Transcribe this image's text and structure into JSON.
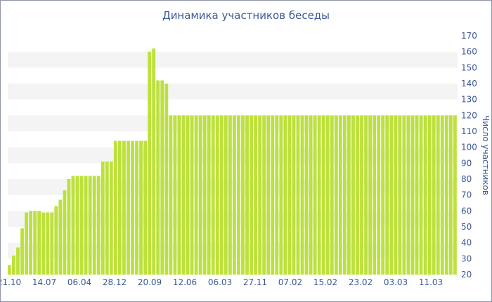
{
  "chart_data": {
    "type": "bar",
    "title": "Динамика участников беседы",
    "ylabel": "Число участников",
    "xlabel": "",
    "ylim": [
      20,
      170
    ],
    "y_ticks": [
      20,
      30,
      40,
      50,
      60,
      70,
      80,
      90,
      100,
      110,
      120,
      130,
      140,
      150,
      160,
      170
    ],
    "y_axis_side": "right",
    "x_tick_labels": [
      "21.10",
      "14.07",
      "06.04",
      "28.12",
      "20.09",
      "12.06",
      "06.03",
      "27.11",
      "07.02",
      "15.02",
      "23.02",
      "03.03",
      "11.03"
    ],
    "grid": "horizontal alternating bands",
    "bar_color": "#bde13c",
    "values": [
      26,
      32,
      37,
      49,
      59,
      60,
      60,
      60,
      59,
      59,
      59,
      63,
      67,
      73,
      80,
      82,
      82,
      82,
      82,
      82,
      82,
      82,
      91,
      91,
      91,
      104,
      104,
      104,
      104,
      104,
      104,
      104,
      104,
      160,
      162,
      142,
      142,
      140,
      120,
      120,
      120,
      120,
      120,
      120,
      120,
      120,
      120,
      120,
      120,
      120,
      120,
      120,
      120,
      120,
      120,
      120,
      120,
      120,
      120,
      120,
      120,
      120,
      120,
      120,
      120,
      120,
      120,
      120,
      120,
      120,
      120,
      120,
      120,
      120,
      120,
      120,
      120,
      120,
      120,
      120,
      120,
      120,
      120,
      120,
      120,
      120,
      120,
      120,
      120,
      120,
      120,
      120,
      120,
      120,
      120,
      120,
      120,
      120,
      120,
      120,
      120,
      120,
      120,
      120,
      120,
      120
    ]
  }
}
